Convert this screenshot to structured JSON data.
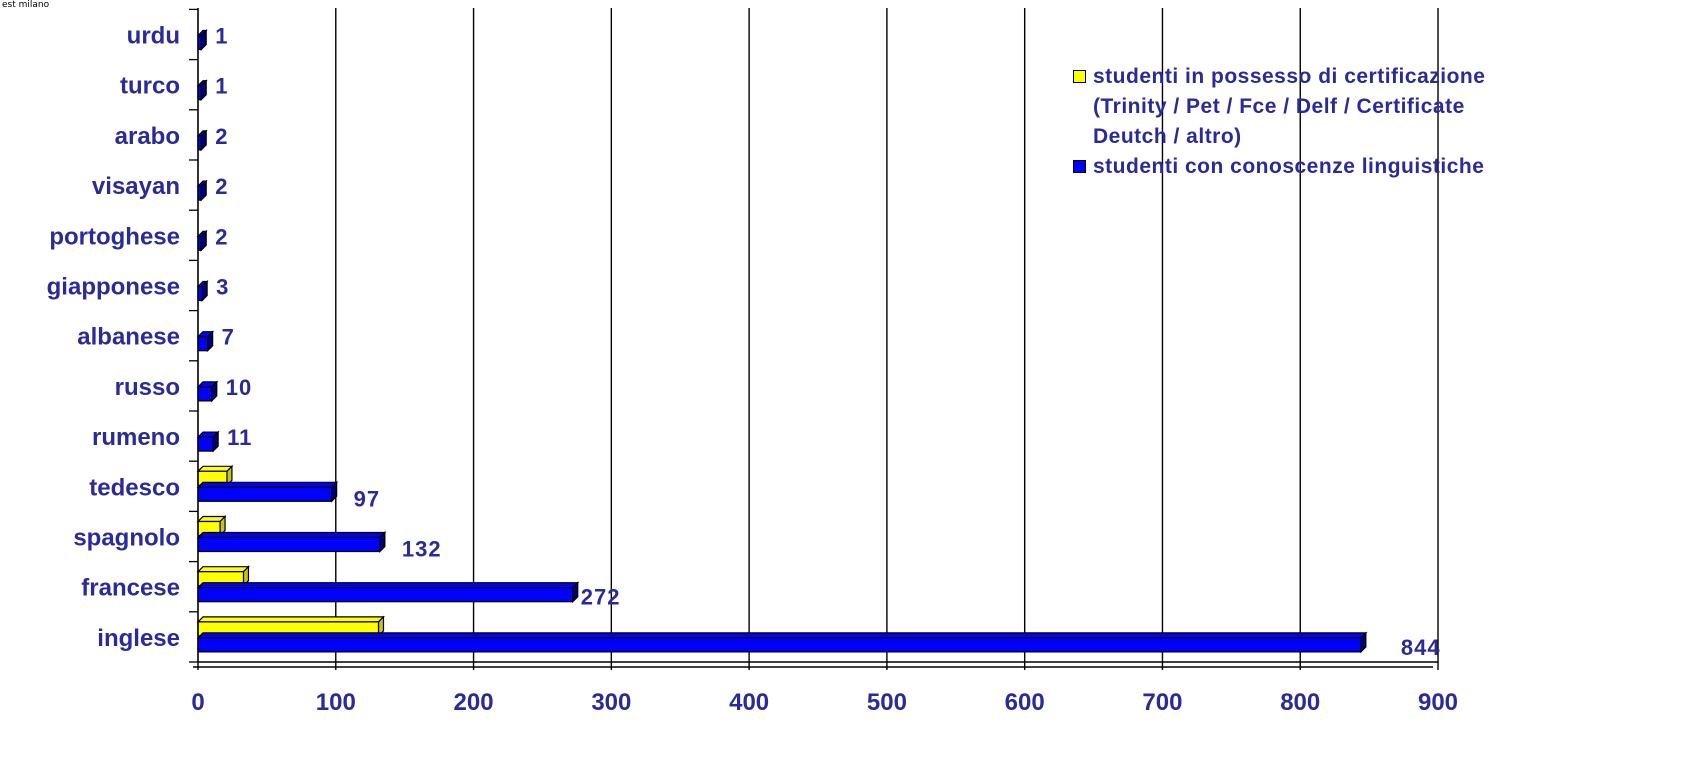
{
  "corner_text": "est milano",
  "chart_data": {
    "type": "bar",
    "orientation": "horizontal",
    "categories": [
      "inglese",
      "francese",
      "spagnolo",
      "tedesco",
      "rumeno",
      "russo",
      "albanese",
      "giapponese",
      "portoghese",
      "visayan",
      "arabo",
      "turco",
      "urdu"
    ],
    "series": [
      {
        "name": "studenti in possesso di certificazione (Trinity / Pet / Fce / Delf / Certificate Deutch / altro)",
        "color": "#ffff00",
        "values": [
          131,
          33,
          16,
          21,
          0,
          0,
          0,
          0,
          0,
          0,
          0,
          0,
          0
        ]
      },
      {
        "name": "studenti con conoscenze linguistiche",
        "color": "#0000ff",
        "values": [
          844,
          272,
          132,
          97,
          11,
          10,
          7,
          3,
          2,
          2,
          2,
          1,
          1
        ],
        "labels": [
          "844",
          "272",
          "132",
          "97",
          "11",
          "10",
          "7",
          "3",
          "2",
          "2",
          "2",
          "1",
          "1"
        ]
      }
    ],
    "xlim": [
      0,
      900
    ],
    "xticks": [
      "0",
      "100",
      "200",
      "300",
      "400",
      "500",
      "600",
      "700",
      "800",
      "900"
    ],
    "grid": "vertical",
    "legend_position": "top-right"
  },
  "legend": {
    "line1": "studenti in possesso di certificazione",
    "line2": "(Trinity / Pet / Fce / Delf / Certificate",
    "line3": "Deutch / altro)",
    "item2": "studenti con conoscenze linguistiche"
  }
}
